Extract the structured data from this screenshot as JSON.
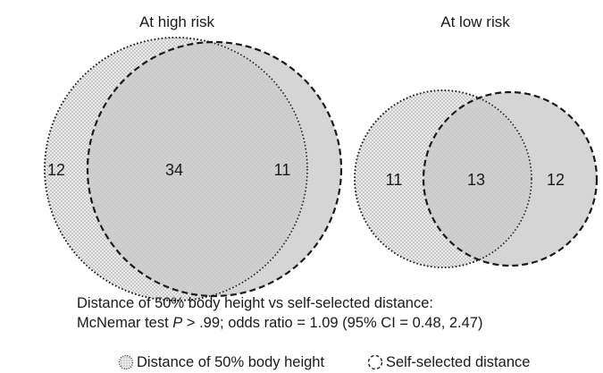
{
  "panels": [
    {
      "title": "At high risk",
      "only_body_height": "12",
      "both": "34",
      "only_self_selected": "11"
    },
    {
      "title": "At low risk",
      "only_body_height": "11",
      "both": "13",
      "only_self_selected": "12"
    }
  ],
  "caption": {
    "line1": "Distance of 50% body height vs self-selected distance:",
    "line2_prefix": "McNemar test ",
    "line2_p": "P",
    "line2_suffix": " > .99; odds ratio = 1.09 (95% CI = 0.48, 2.47)"
  },
  "legend": {
    "body_height": "Distance of 50% body height",
    "self_selected": "Self-selected distance"
  },
  "colors": {
    "stipple_fill": "#d6d6d6",
    "solid_fill": "#cfcfcf",
    "outline": "#1a1a1a"
  }
}
